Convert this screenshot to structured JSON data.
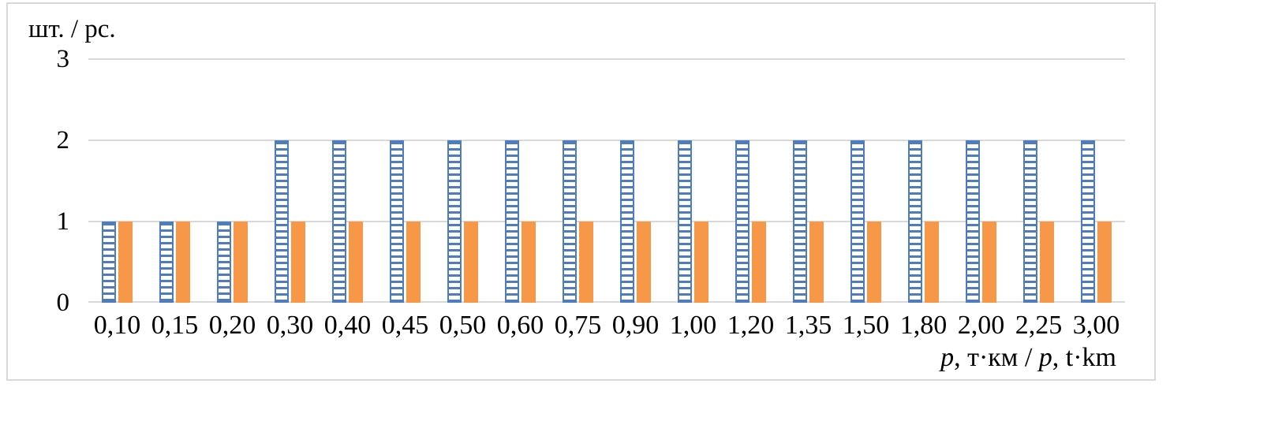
{
  "chart_data": {
    "type": "bar",
    "title": "",
    "y_axis_title": "шт. / pc.",
    "x_axis_title": "p, т·км / p, t·km",
    "x_axis_title_parts": [
      {
        "text": "p",
        "italic": true
      },
      {
        "text": ", т·км / ",
        "italic": false
      },
      {
        "text": "p",
        "italic": true
      },
      {
        "text": ", t·km",
        "italic": false
      }
    ],
    "categories": [
      "0,10",
      "0,15",
      "0,20",
      "0,30",
      "0,40",
      "0,45",
      "0,50",
      "0,60",
      "0,75",
      "0,90",
      "1,00",
      "1,20",
      "1,35",
      "1,50",
      "1,80",
      "2,00",
      "2,25",
      "3,00"
    ],
    "series": [
      {
        "id": "striped-blue-series",
        "pattern": "horizontal-stripes",
        "color": "#4e7cbd",
        "values": [
          1,
          1,
          1,
          2,
          2,
          2,
          2,
          2,
          2,
          2,
          2,
          2,
          2,
          2,
          2,
          2,
          2,
          2
        ]
      },
      {
        "id": "solid-orange-series",
        "pattern": "solid",
        "color": "#f69848",
        "values": [
          1,
          1,
          1,
          1,
          1,
          1,
          1,
          1,
          1,
          1,
          1,
          1,
          1,
          1,
          1,
          1,
          1,
          1
        ]
      }
    ],
    "y_ticks": [
      0,
      1,
      2,
      3
    ],
    "ylim": [
      0,
      3
    ],
    "grid": true,
    "gridline_color": "#d9d9d9",
    "frame_color": "#d9d9d9",
    "legend": "none"
  }
}
